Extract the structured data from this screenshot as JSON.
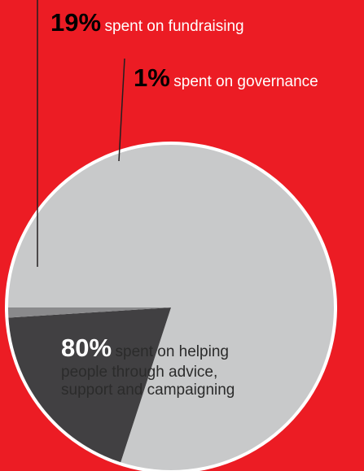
{
  "chart_data": {
    "type": "pie",
    "slices": [
      {
        "value": 80,
        "label_pct": "80%",
        "label_lines": [
          "spent on helping",
          "people through advice,",
          "support and campaigning"
        ],
        "color": "#c8c9ca"
      },
      {
        "value": 19,
        "label_pct": "19%",
        "label_lines": [
          "spent on fundraising"
        ],
        "color": "#414042"
      },
      {
        "value": 1,
        "label_pct": "1%",
        "label_lines": [
          "spent on governance"
        ],
        "color": "#8a8a8c"
      }
    ],
    "background": "#ec1c24",
    "outline_color": "#ffffff",
    "leader_color": "#231f20"
  }
}
